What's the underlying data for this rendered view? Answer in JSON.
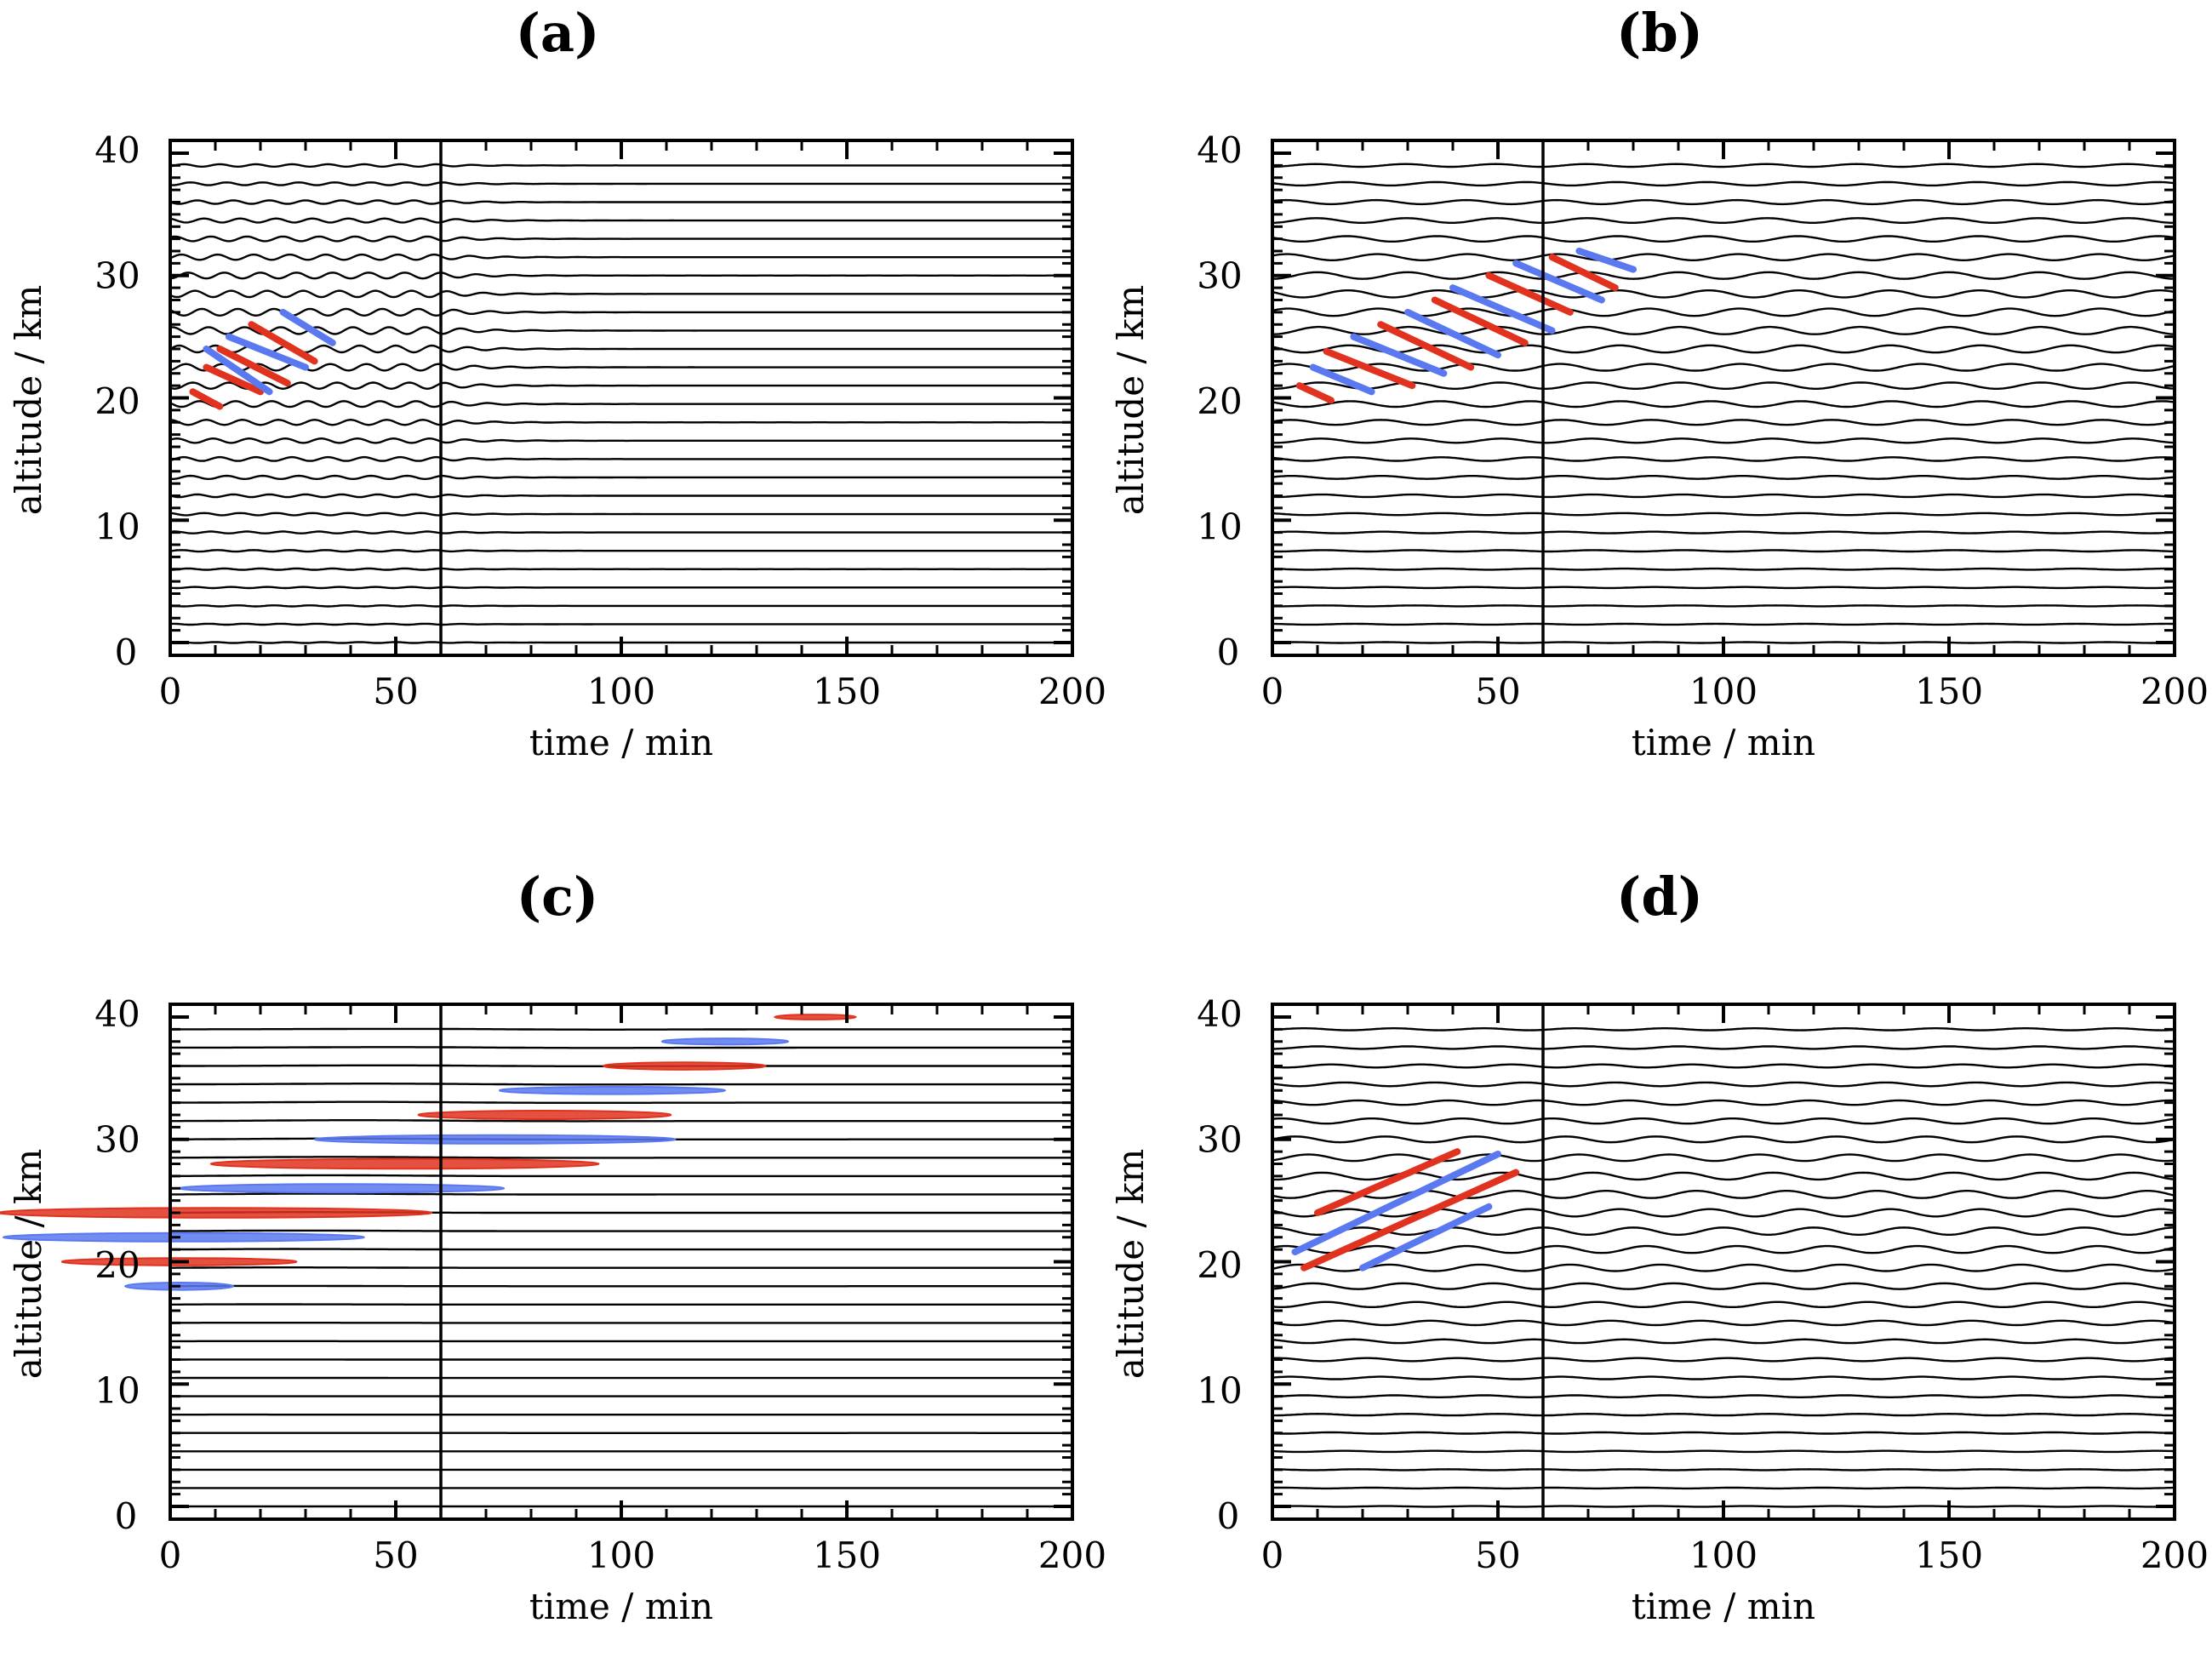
{
  "chart_data": [
    {
      "type": "line",
      "panel": "a",
      "title_open": "(",
      "title_letter": "a",
      "title_close": ")",
      "xlabel": "time / min",
      "ylabel": "altitude / km",
      "xlim": [
        0,
        200
      ],
      "ylim": [
        0,
        40
      ],
      "xticks": [
        "0",
        "50",
        "100",
        "150",
        "200"
      ],
      "yticks": [
        "0",
        "10",
        "20",
        "30",
        "40"
      ],
      "vline_min": 60,
      "trace_spacing_km": 1.5,
      "wave_amplitude_km": 0.28,
      "wave_period_min": 8,
      "wave_phase_slope_min_per_km": -1.0,
      "wave_envelope_center_km": 25,
      "wave_envelope_width_km": 12,
      "wave_floor": 0.12,
      "wave_time_cutoff_min": 60,
      "wave_decay_min": 10,
      "wave_phase_speed_km_per_min": 0,
      "wave_packet_width_min": 1000,
      "contour_segments": [
        {
          "color": "red",
          "x1": 5,
          "y1": 20.5,
          "x2": 11,
          "y2": 19.3
        },
        {
          "color": "red",
          "x1": 8,
          "y1": 22.5,
          "x2": 20,
          "y2": 20.5
        },
        {
          "color": "blue",
          "x1": 8,
          "y1": 24.0,
          "x2": 22,
          "y2": 20.5
        },
        {
          "color": "red",
          "x1": 11,
          "y1": 24.0,
          "x2": 26,
          "y2": 21.2
        },
        {
          "color": "blue",
          "x1": 13,
          "y1": 25.0,
          "x2": 30,
          "y2": 22.5
        },
        {
          "color": "red",
          "x1": 18,
          "y1": 26.0,
          "x2": 32,
          "y2": 23.0
        },
        {
          "color": "blue",
          "x1": 25,
          "y1": 27.0,
          "x2": 36,
          "y2": 24.5
        }
      ]
    },
    {
      "type": "line",
      "panel": "b",
      "title_open": "(",
      "title_letter": "b",
      "title_close": ")",
      "xlabel": "time / min",
      "ylabel": "altitude / km",
      "xlim": [
        0,
        200
      ],
      "ylim": [
        0,
        40
      ],
      "xticks": [
        "0",
        "50",
        "100",
        "150",
        "200"
      ],
      "yticks": [
        "0",
        "10",
        "20",
        "30",
        "40"
      ],
      "vline_min": 60,
      "trace_spacing_km": 1.5,
      "wave_amplitude_km": 0.3,
      "wave_period_min": 20,
      "wave_phase_slope_min_per_km": -4.5,
      "wave_envelope_center_km": 26,
      "wave_envelope_width_km": 12,
      "wave_floor": 0.1,
      "wave_time_cutoff_min": 1000,
      "wave_decay_min": 60,
      "wave_phase_speed_km_per_min": 0,
      "wave_packet_width_min": 1000,
      "contour_segments": [
        {
          "color": "red",
          "x1": 6,
          "y1": 21.0,
          "x2": 13,
          "y2": 19.8
        },
        {
          "color": "blue",
          "x1": 9,
          "y1": 22.5,
          "x2": 22,
          "y2": 20.5
        },
        {
          "color": "red",
          "x1": 12,
          "y1": 23.8,
          "x2": 31,
          "y2": 21.0
        },
        {
          "color": "blue",
          "x1": 18,
          "y1": 25.0,
          "x2": 38,
          "y2": 22.0
        },
        {
          "color": "red",
          "x1": 24,
          "y1": 26.0,
          "x2": 44,
          "y2": 22.5
        },
        {
          "color": "blue",
          "x1": 30,
          "y1": 27.0,
          "x2": 50,
          "y2": 23.5
        },
        {
          "color": "red",
          "x1": 36,
          "y1": 28.0,
          "x2": 56,
          "y2": 24.5
        },
        {
          "color": "blue",
          "x1": 40,
          "y1": 29.0,
          "x2": 62,
          "y2": 25.5
        },
        {
          "color": "red",
          "x1": 48,
          "y1": 30.0,
          "x2": 66,
          "y2": 27.0
        },
        {
          "color": "blue",
          "x1": 54,
          "y1": 31.0,
          "x2": 73,
          "y2": 28.0
        },
        {
          "color": "red",
          "x1": 62,
          "y1": 31.5,
          "x2": 76,
          "y2": 29.0
        },
        {
          "color": "blue",
          "x1": 68,
          "y1": 32.0,
          "x2": 80,
          "y2": 30.5
        }
      ]
    },
    {
      "type": "line",
      "panel": "c",
      "title_open": "(",
      "title_letter": "c",
      "title_close": ")",
      "xlabel": "time / min",
      "ylabel": "altitude / km",
      "xlim": [
        0,
        200
      ],
      "ylim": [
        0,
        40
      ],
      "xticks": [
        "0",
        "50",
        "100",
        "150",
        "200"
      ],
      "yticks": [
        "0",
        "10",
        "20",
        "30",
        "40"
      ],
      "vline_min": 60,
      "trace_spacing_km": 1.5,
      "wave_amplitude_km": 0.07,
      "wave_period_min": 150,
      "wave_phase_slope_min_per_km": 0,
      "wave_envelope_center_km": 30,
      "wave_envelope_width_km": 14,
      "wave_floor": 0.3,
      "wave_time_cutoff_min": 1000,
      "wave_decay_min": 60,
      "wave_phase_speed_km_per_min": 0.3,
      "wave_packet_width_min": 40,
      "contour_ellipses": [
        {
          "color": "blue",
          "cx": 2,
          "cy": 18.0,
          "rx": 12,
          "ry": 0.3
        },
        {
          "color": "red",
          "cx": 2,
          "cy": 20.0,
          "rx": 26,
          "ry": 0.3
        },
        {
          "color": "blue",
          "cx": 3,
          "cy": 22.0,
          "rx": 40,
          "ry": 0.35
        },
        {
          "color": "red",
          "cx": 10,
          "cy": 24.0,
          "rx": 48,
          "ry": 0.4
        },
        {
          "color": "blue",
          "cx": 38,
          "cy": 26.0,
          "rx": 36,
          "ry": 0.35
        },
        {
          "color": "red",
          "cx": 52,
          "cy": 28.0,
          "rx": 43,
          "ry": 0.4
        },
        {
          "color": "blue",
          "cx": 72,
          "cy": 30.0,
          "rx": 40,
          "ry": 0.35
        },
        {
          "color": "red",
          "cx": 83,
          "cy": 32.0,
          "rx": 28,
          "ry": 0.35
        },
        {
          "color": "blue",
          "cx": 98,
          "cy": 34.0,
          "rx": 25,
          "ry": 0.3
        },
        {
          "color": "red",
          "cx": 114,
          "cy": 36.0,
          "rx": 18,
          "ry": 0.3
        },
        {
          "color": "blue",
          "cx": 123,
          "cy": 38.0,
          "rx": 14,
          "ry": 0.25
        },
        {
          "color": "red",
          "cx": 143,
          "cy": 40.0,
          "rx": 9,
          "ry": 0.2
        }
      ]
    },
    {
      "type": "line",
      "panel": "d",
      "title_open": "(",
      "title_letter": "d",
      "title_close": ")",
      "xlabel": "time / min",
      "ylabel": "altitude / km",
      "xlim": [
        0,
        200
      ],
      "ylim": [
        0,
        40
      ],
      "xticks": [
        "0",
        "50",
        "100",
        "150",
        "200"
      ],
      "yticks": [
        "0",
        "10",
        "20",
        "30",
        "40"
      ],
      "vline_min": 60,
      "trace_spacing_km": 1.5,
      "wave_amplitude_km": 0.3,
      "wave_period_min": 20,
      "wave_phase_slope_min_per_km": -2.0,
      "wave_envelope_center_km": 24,
      "wave_envelope_width_km": 12,
      "wave_floor": 0.08,
      "wave_time_cutoff_min": 1000,
      "wave_decay_min": 60,
      "wave_phase_speed_km_per_min": 0,
      "wave_packet_width_min": 1000,
      "contour_segments": [
        {
          "color": "red",
          "x1": 7,
          "y1": 19.5,
          "x2": 54,
          "y2": 27.3
        },
        {
          "color": "blue",
          "x1": 5,
          "y1": 20.8,
          "x2": 50,
          "y2": 28.8
        },
        {
          "color": "red",
          "x1": 10,
          "y1": 24.0,
          "x2": 41,
          "y2": 29.0
        },
        {
          "color": "blue",
          "x1": 20,
          "y1": 19.5,
          "x2": 48,
          "y2": 24.5
        }
      ]
    }
  ]
}
